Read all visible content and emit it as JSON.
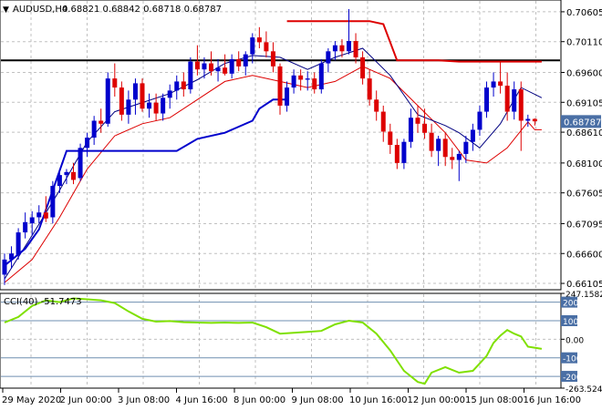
{
  "symbol": "AUDUSD,H4",
  "ohlc_header": "0.68821 0.68842 0.68718 0.68787",
  "cci_header": "CCI(40) -51.7473",
  "colors": {
    "bull": "#0000cc",
    "bear": "#dd0000",
    "ma_fast": "#000080",
    "ma_slow": "#dd0000",
    "support": "#0000cc",
    "resistance": "#dd0000",
    "hline": "#000000",
    "cci": "#7fe000",
    "tag_bg": "#4a6fa5"
  },
  "chart_data": [
    {
      "type": "candlestick",
      "title": "AUDUSD,H4",
      "subtitle": "0.68821 0.68842 0.68718 0.68787",
      "ylim": [
        0.66,
        0.708
      ],
      "y_ticks": [
        "0.70605",
        "0.70110",
        "0.69600",
        "0.69105",
        "0.68610",
        "0.68100",
        "0.67605",
        "0.67095",
        "0.66600",
        "0.66105"
      ],
      "current_price": "0.68787",
      "x_ticks": [
        "29 May 2020",
        "2 Jun 00:00",
        "3 Jun 08:00",
        "4 Jun 16:00",
        "8 Jun 00:00",
        "9 Jun 08:00",
        "10 Jun 16:00",
        "12 Jun 00:00",
        "15 Jun 08:00",
        "16 Jun 16:00"
      ],
      "candles": [
        {
          "o": 0.6625,
          "h": 0.666,
          "l": 0.6608,
          "c": 0.665
        },
        {
          "o": 0.665,
          "h": 0.6672,
          "l": 0.6635,
          "c": 0.666
        },
        {
          "o": 0.6658,
          "h": 0.6702,
          "l": 0.665,
          "c": 0.6695
        },
        {
          "o": 0.6695,
          "h": 0.6728,
          "l": 0.6685,
          "c": 0.6712
        },
        {
          "o": 0.671,
          "h": 0.673,
          "l": 0.669,
          "c": 0.672
        },
        {
          "o": 0.672,
          "h": 0.674,
          "l": 0.671,
          "c": 0.6728
        },
        {
          "o": 0.6728,
          "h": 0.6755,
          "l": 0.6712,
          "c": 0.6718
        },
        {
          "o": 0.672,
          "h": 0.678,
          "l": 0.671,
          "c": 0.6772
        },
        {
          "o": 0.6772,
          "h": 0.68,
          "l": 0.676,
          "c": 0.679
        },
        {
          "o": 0.679,
          "h": 0.68,
          "l": 0.6775,
          "c": 0.6795
        },
        {
          "o": 0.6795,
          "h": 0.681,
          "l": 0.6775,
          "c": 0.6782
        },
        {
          "o": 0.6785,
          "h": 0.6842,
          "l": 0.678,
          "c": 0.6835
        },
        {
          "o": 0.6835,
          "h": 0.686,
          "l": 0.682,
          "c": 0.6852
        },
        {
          "o": 0.6852,
          "h": 0.6888,
          "l": 0.684,
          "c": 0.688
        },
        {
          "o": 0.688,
          "h": 0.69,
          "l": 0.686,
          "c": 0.6875
        },
        {
          "o": 0.6875,
          "h": 0.696,
          "l": 0.687,
          "c": 0.695
        },
        {
          "o": 0.695,
          "h": 0.6975,
          "l": 0.692,
          "c": 0.6935
        },
        {
          "o": 0.6935,
          "h": 0.6945,
          "l": 0.688,
          "c": 0.689
        },
        {
          "o": 0.689,
          "h": 0.693,
          "l": 0.6875,
          "c": 0.6915
        },
        {
          "o": 0.6915,
          "h": 0.695,
          "l": 0.689,
          "c": 0.6942
        },
        {
          "o": 0.6942,
          "h": 0.695,
          "l": 0.6895,
          "c": 0.69
        },
        {
          "o": 0.69,
          "h": 0.6925,
          "l": 0.6885,
          "c": 0.691
        },
        {
          "o": 0.691,
          "h": 0.6925,
          "l": 0.688,
          "c": 0.6892
        },
        {
          "o": 0.6892,
          "h": 0.6925,
          "l": 0.688,
          "c": 0.6918
        },
        {
          "o": 0.6918,
          "h": 0.694,
          "l": 0.69,
          "c": 0.693
        },
        {
          "o": 0.693,
          "h": 0.6955,
          "l": 0.6915,
          "c": 0.6945
        },
        {
          "o": 0.6945,
          "h": 0.696,
          "l": 0.692,
          "c": 0.6932
        },
        {
          "o": 0.6932,
          "h": 0.6985,
          "l": 0.6925,
          "c": 0.6978
        },
        {
          "o": 0.6978,
          "h": 0.7005,
          "l": 0.6955,
          "c": 0.6965
        },
        {
          "o": 0.6965,
          "h": 0.6985,
          "l": 0.695,
          "c": 0.6975
        },
        {
          "o": 0.6975,
          "h": 0.6995,
          "l": 0.6955,
          "c": 0.6962
        },
        {
          "o": 0.6962,
          "h": 0.6982,
          "l": 0.6945,
          "c": 0.6968
        },
        {
          "o": 0.6968,
          "h": 0.699,
          "l": 0.6955,
          "c": 0.6958
        },
        {
          "o": 0.6958,
          "h": 0.699,
          "l": 0.695,
          "c": 0.6982
        },
        {
          "o": 0.6982,
          "h": 0.6995,
          "l": 0.6962,
          "c": 0.697
        },
        {
          "o": 0.697,
          "h": 0.6995,
          "l": 0.6955,
          "c": 0.699
        },
        {
          "o": 0.699,
          "h": 0.7025,
          "l": 0.6975,
          "c": 0.7018
        },
        {
          "o": 0.7018,
          "h": 0.7035,
          "l": 0.7,
          "c": 0.701
        },
        {
          "o": 0.701,
          "h": 0.7028,
          "l": 0.6985,
          "c": 0.6995
        },
        {
          "o": 0.6995,
          "h": 0.701,
          "l": 0.696,
          "c": 0.697
        },
        {
          "o": 0.697,
          "h": 0.6975,
          "l": 0.689,
          "c": 0.6905
        },
        {
          "o": 0.6905,
          "h": 0.6945,
          "l": 0.6895,
          "c": 0.6935
        },
        {
          "o": 0.6935,
          "h": 0.6965,
          "l": 0.6925,
          "c": 0.6955
        },
        {
          "o": 0.6955,
          "h": 0.6965,
          "l": 0.693,
          "c": 0.6948
        },
        {
          "o": 0.6948,
          "h": 0.6962,
          "l": 0.693,
          "c": 0.695
        },
        {
          "o": 0.695,
          "h": 0.696,
          "l": 0.6925,
          "c": 0.6932
        },
        {
          "o": 0.6932,
          "h": 0.6982,
          "l": 0.6925,
          "c": 0.6975
        },
        {
          "o": 0.6975,
          "h": 0.7,
          "l": 0.696,
          "c": 0.6995
        },
        {
          "o": 0.6995,
          "h": 0.7012,
          "l": 0.698,
          "c": 0.7005
        },
        {
          "o": 0.7005,
          "h": 0.7015,
          "l": 0.6985,
          "c": 0.6995
        },
        {
          "o": 0.6995,
          "h": 0.7065,
          "l": 0.699,
          "c": 0.7012
        },
        {
          "o": 0.7012,
          "h": 0.7025,
          "l": 0.6975,
          "c": 0.6985
        },
        {
          "o": 0.6985,
          "h": 0.6995,
          "l": 0.694,
          "c": 0.695
        },
        {
          "o": 0.695,
          "h": 0.6965,
          "l": 0.6905,
          "c": 0.6915
        },
        {
          "o": 0.6915,
          "h": 0.693,
          "l": 0.688,
          "c": 0.6895
        },
        {
          "o": 0.6895,
          "h": 0.6905,
          "l": 0.6845,
          "c": 0.6862
        },
        {
          "o": 0.6862,
          "h": 0.6875,
          "l": 0.6825,
          "c": 0.684
        },
        {
          "o": 0.684,
          "h": 0.685,
          "l": 0.68,
          "c": 0.681
        },
        {
          "o": 0.681,
          "h": 0.685,
          "l": 0.68,
          "c": 0.6845
        },
        {
          "o": 0.6845,
          "h": 0.69,
          "l": 0.6835,
          "c": 0.6885
        },
        {
          "o": 0.6885,
          "h": 0.6905,
          "l": 0.686,
          "c": 0.6875
        },
        {
          "o": 0.6875,
          "h": 0.69,
          "l": 0.685,
          "c": 0.686
        },
        {
          "o": 0.686,
          "h": 0.6875,
          "l": 0.682,
          "c": 0.683
        },
        {
          "o": 0.683,
          "h": 0.6855,
          "l": 0.6805,
          "c": 0.685
        },
        {
          "o": 0.685,
          "h": 0.686,
          "l": 0.6805,
          "c": 0.682
        },
        {
          "o": 0.682,
          "h": 0.6835,
          "l": 0.68,
          "c": 0.6815
        },
        {
          "o": 0.6815,
          "h": 0.683,
          "l": 0.678,
          "c": 0.6825
        },
        {
          "o": 0.6825,
          "h": 0.6855,
          "l": 0.681,
          "c": 0.6845
        },
        {
          "o": 0.6845,
          "h": 0.6875,
          "l": 0.683,
          "c": 0.6865
        },
        {
          "o": 0.6865,
          "h": 0.6905,
          "l": 0.6855,
          "c": 0.6895
        },
        {
          "o": 0.6895,
          "h": 0.6945,
          "l": 0.6885,
          "c": 0.6935
        },
        {
          "o": 0.6935,
          "h": 0.696,
          "l": 0.692,
          "c": 0.6945
        },
        {
          "o": 0.6945,
          "h": 0.6978,
          "l": 0.6925,
          "c": 0.6938
        },
        {
          "o": 0.6938,
          "h": 0.696,
          "l": 0.688,
          "c": 0.6895
        },
        {
          "o": 0.6895,
          "h": 0.6945,
          "l": 0.6882,
          "c": 0.6932
        },
        {
          "o": 0.6932,
          "h": 0.6945,
          "l": 0.683,
          "c": 0.688
        },
        {
          "o": 0.688,
          "h": 0.689,
          "l": 0.687,
          "c": 0.6883
        },
        {
          "o": 0.6883,
          "h": 0.6884,
          "l": 0.6872,
          "c": 0.6879
        }
      ],
      "hline_black": 0.698,
      "support_line": [
        [
          0,
          0.664
        ],
        [
          3,
          0.6668
        ],
        [
          5,
          0.67
        ],
        [
          7,
          0.6765
        ],
        [
          9,
          0.683
        ],
        [
          25,
          0.683
        ],
        [
          28,
          0.685
        ],
        [
          32,
          0.686
        ],
        [
          36,
          0.688
        ],
        [
          37,
          0.69
        ],
        [
          39,
          0.6915
        ],
        [
          41,
          0.6915
        ]
      ],
      "resistance_line": [
        [
          41,
          0.7045
        ],
        [
          53,
          0.7045
        ],
        [
          55,
          0.704
        ],
        [
          57,
          0.698
        ],
        [
          63,
          0.698
        ],
        [
          66,
          0.6978
        ],
        [
          78,
          0.6978
        ]
      ],
      "ma_fast": [
        [
          0,
          0.6618
        ],
        [
          4,
          0.669
        ],
        [
          8,
          0.6765
        ],
        [
          12,
          0.6845
        ],
        [
          16,
          0.6895
        ],
        [
          20,
          0.691
        ],
        [
          24,
          0.6925
        ],
        [
          28,
          0.6948
        ],
        [
          32,
          0.6975
        ],
        [
          36,
          0.6988
        ],
        [
          40,
          0.6985
        ],
        [
          44,
          0.6965
        ],
        [
          48,
          0.6985
        ],
        [
          52,
          0.7
        ],
        [
          56,
          0.6955
        ],
        [
          60,
          0.689
        ],
        [
          64,
          0.6872
        ],
        [
          66,
          0.686
        ],
        [
          69,
          0.6835
        ],
        [
          72,
          0.6875
        ],
        [
          75,
          0.6935
        ],
        [
          78,
          0.6918
        ]
      ],
      "ma_slow": [
        [
          0,
          0.6612
        ],
        [
          4,
          0.665
        ],
        [
          8,
          0.672
        ],
        [
          12,
          0.68
        ],
        [
          16,
          0.6855
        ],
        [
          20,
          0.6875
        ],
        [
          24,
          0.6885
        ],
        [
          28,
          0.6915
        ],
        [
          32,
          0.6945
        ],
        [
          36,
          0.6955
        ],
        [
          40,
          0.6945
        ],
        [
          44,
          0.6935
        ],
        [
          48,
          0.6945
        ],
        [
          52,
          0.697
        ],
        [
          56,
          0.695
        ],
        [
          60,
          0.6905
        ],
        [
          64,
          0.686
        ],
        [
          67,
          0.6815
        ],
        [
          70,
          0.681
        ],
        [
          73,
          0.6835
        ],
        [
          76,
          0.6878
        ],
        [
          77,
          0.6865
        ],
        [
          78,
          0.6865
        ]
      ]
    },
    {
      "type": "line",
      "title": "CCI(40) -51.7473",
      "ylim": [
        -263.524,
        247.1582
      ],
      "y_ticks": [
        "247.1582",
        "200",
        "100",
        "0.00",
        "-100",
        "-200",
        "-263.524"
      ],
      "levels": [
        200,
        100,
        -100,
        -200
      ],
      "series": [
        {
          "values": [
            [
              0,
              90
            ],
            [
              2,
              120
            ],
            [
              4,
              180
            ],
            [
              6,
              210
            ],
            [
              8,
              200
            ],
            [
              10,
              220
            ],
            [
              12,
              215
            ],
            [
              14,
              210
            ],
            [
              16,
              195
            ],
            [
              18,
              150
            ],
            [
              20,
              110
            ],
            [
              22,
              95
            ],
            [
              24,
              98
            ],
            [
              26,
              92
            ],
            [
              28,
              90
            ],
            [
              30,
              88
            ],
            [
              32,
              90
            ],
            [
              34,
              88
            ],
            [
              36,
              90
            ],
            [
              38,
              65
            ],
            [
              40,
              30
            ],
            [
              42,
              35
            ],
            [
              44,
              40
            ],
            [
              46,
              45
            ],
            [
              48,
              80
            ],
            [
              50,
              100
            ],
            [
              52,
              90
            ],
            [
              54,
              30
            ],
            [
              56,
              -60
            ],
            [
              58,
              -170
            ],
            [
              60,
              -230
            ],
            [
              61,
              -240
            ],
            [
              62,
              -180
            ],
            [
              64,
              -150
            ],
            [
              66,
              -180
            ],
            [
              68,
              -170
            ],
            [
              70,
              -90
            ],
            [
              71,
              -20
            ],
            [
              72,
              20
            ],
            [
              73,
              50
            ],
            [
              74,
              30
            ],
            [
              75,
              15
            ],
            [
              76,
              -40
            ],
            [
              78,
              -52
            ]
          ]
        }
      ]
    }
  ]
}
